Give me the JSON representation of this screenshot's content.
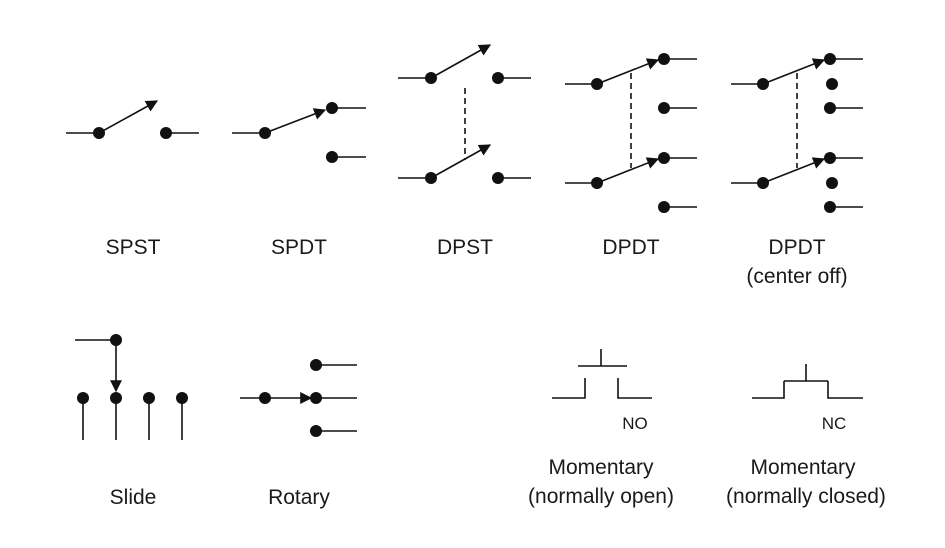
{
  "colors": {
    "ink": "#111111",
    "background": "#ffffff"
  },
  "symbols": {
    "spst": {
      "label": "SPST"
    },
    "spdt": {
      "label": "SPDT"
    },
    "dpst": {
      "label": "DPST"
    },
    "dpdt": {
      "label": "DPDT"
    },
    "dpdt_center_off": {
      "label": "DPDT",
      "sublabel": "(center off)"
    },
    "slide": {
      "label": "Slide"
    },
    "rotary": {
      "label": "Rotary"
    },
    "momentary_no": {
      "tag": "NO",
      "label": "Momentary",
      "sublabel": "(normally open)"
    },
    "momentary_nc": {
      "tag": "NC",
      "label": "Momentary",
      "sublabel": "(normally closed)"
    }
  }
}
